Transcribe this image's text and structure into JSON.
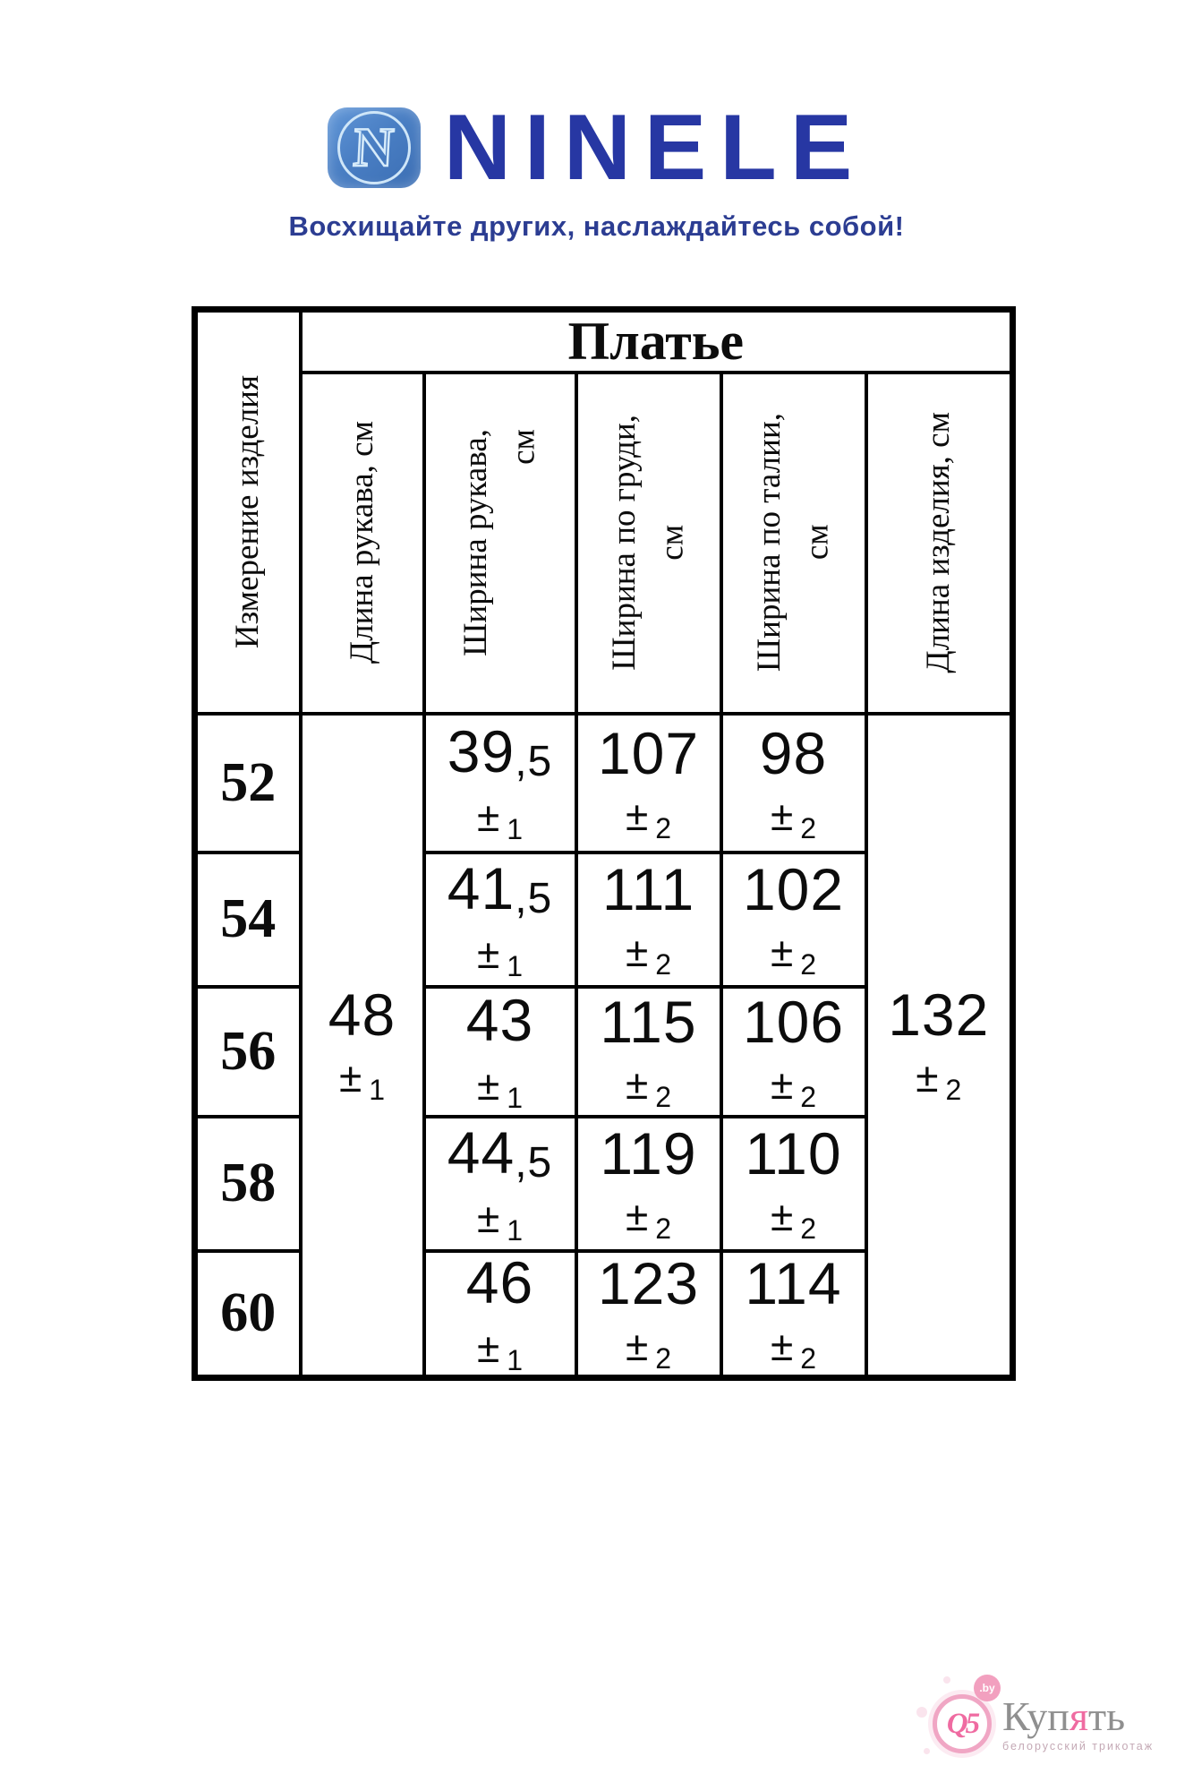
{
  "logo": {
    "icon_letter": "N",
    "brand": "NINELE",
    "tagline": "Восхищайте других, наслаждайтесь собой!",
    "brand_color": "#2737a3",
    "icon_bg_color": "#4a7fc4"
  },
  "table": {
    "corner_header": "Измерение изделия",
    "group_header": "Платье",
    "columns": [
      {
        "label": "Длина рукава, см",
        "label2": ""
      },
      {
        "label": "Ширина рукава,",
        "label2": "см"
      },
      {
        "label": "Ширина по груди,",
        "label2": "см"
      },
      {
        "label": "Ширина по талии,",
        "label2": "см"
      },
      {
        "label": "Длина изделия, см",
        "label2": ""
      }
    ],
    "merged_cells": {
      "sleeve_length": {
        "value": "48",
        "tol_sign": "±",
        "tol_num": "1"
      },
      "garment_length": {
        "value": "132",
        "tol_sign": "±",
        "tol_num": "2"
      }
    },
    "rows": [
      {
        "size": "52",
        "sleeve_width": {
          "int": "39",
          "frac": ",5",
          "tol_sign": "±",
          "tol_num": "1"
        },
        "chest_width": {
          "int": "107",
          "frac": "",
          "tol_sign": "±",
          "tol_num": "2"
        },
        "waist_width": {
          "int": "98",
          "frac": "",
          "tol_sign": "±",
          "tol_num": "2"
        }
      },
      {
        "size": "54",
        "sleeve_width": {
          "int": "41",
          "frac": ",5",
          "tol_sign": "±",
          "tol_num": "1"
        },
        "chest_width": {
          "int": "111",
          "frac": "",
          "tol_sign": "±",
          "tol_num": "2"
        },
        "waist_width": {
          "int": "102",
          "frac": "",
          "tol_sign": "±",
          "tol_num": "2"
        }
      },
      {
        "size": "56",
        "sleeve_width": {
          "int": "43",
          "frac": "",
          "tol_sign": "±",
          "tol_num": "1"
        },
        "chest_width": {
          "int": "115",
          "frac": "",
          "tol_sign": "±",
          "tol_num": "2"
        },
        "waist_width": {
          "int": "106",
          "frac": "",
          "tol_sign": "±",
          "tol_num": "2"
        }
      },
      {
        "size": "58",
        "sleeve_width": {
          "int": "44",
          "frac": ",5",
          "tol_sign": "±",
          "tol_num": "1"
        },
        "chest_width": {
          "int": "119",
          "frac": "",
          "tol_sign": "±",
          "tol_num": "2"
        },
        "waist_width": {
          "int": "110",
          "frac": "",
          "tol_sign": "±",
          "tol_num": "2"
        }
      },
      {
        "size": "60",
        "sleeve_width": {
          "int": "46",
          "frac": "",
          "tol_sign": "±",
          "tol_num": "1"
        },
        "chest_width": {
          "int": "123",
          "frac": "",
          "tol_sign": "±",
          "tol_num": "2"
        },
        "waist_width": {
          "int": "114",
          "frac": "",
          "tol_sign": "±",
          "tol_num": "2"
        }
      }
    ]
  },
  "watermark": {
    "q5": "Q5",
    "by": ".by",
    "name_part1": "Куп",
    "name_pink": "я",
    "name_part2": "ть",
    "subtitle": "белорусский трикотаж",
    "pink_color": "#ef6ba1",
    "gray_color": "#8f8f8f"
  }
}
